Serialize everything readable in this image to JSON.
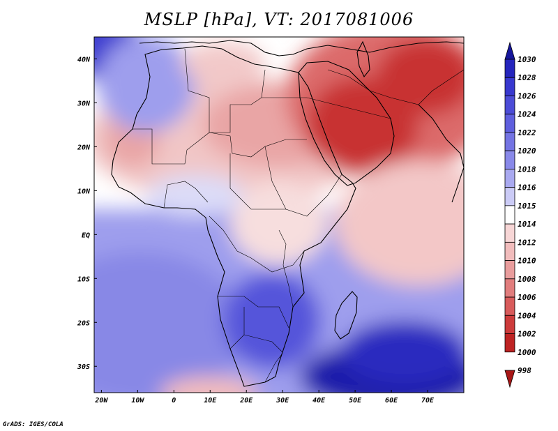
{
  "title": "MSLP [hPa], VT: 2017081006",
  "credit": "GrADS: IGES/COLA",
  "map": {
    "lon_range": [
      -22,
      80
    ],
    "lat_range": [
      -36,
      45
    ],
    "lon_ticks": [
      {
        "value": -20,
        "label": "20W"
      },
      {
        "value": -10,
        "label": "10W"
      },
      {
        "value": 0,
        "label": "0"
      },
      {
        "value": 10,
        "label": "10E"
      },
      {
        "value": 20,
        "label": "20E"
      },
      {
        "value": 30,
        "label": "30E"
      },
      {
        "value": 40,
        "label": "40E"
      },
      {
        "value": 50,
        "label": "50E"
      },
      {
        "value": 60,
        "label": "60E"
      },
      {
        "value": 70,
        "label": "70E"
      }
    ],
    "lat_ticks": [
      {
        "value": 40,
        "label": "40N"
      },
      {
        "value": 30,
        "label": "30N"
      },
      {
        "value": 20,
        "label": "20N"
      },
      {
        "value": 10,
        "label": "10N"
      },
      {
        "value": 0,
        "label": "EQ"
      },
      {
        "value": -10,
        "label": "10S"
      },
      {
        "value": -20,
        "label": "20S"
      },
      {
        "value": -30,
        "label": "30S"
      }
    ],
    "pressure_centers": [
      {
        "lon": 50,
        "lat": 24,
        "level": 998,
        "radius": 22
      },
      {
        "lon": 65,
        "lat": 33,
        "level": 998,
        "radius": 18
      },
      {
        "lon": 35,
        "lat": 22,
        "level": 1004,
        "radius": 18
      },
      {
        "lon": 15,
        "lat": 18,
        "level": 1008,
        "radius": 15
      },
      {
        "lon": -12,
        "lat": 22,
        "level": 1008,
        "radius": 8
      },
      {
        "lon": 18,
        "lat": 38,
        "level": 1012,
        "radius": 10
      },
      {
        "lon": 65,
        "lat": 0,
        "level": 1012,
        "radius": 22
      },
      {
        "lon": 60,
        "lat": -32,
        "level": 1030,
        "radius": 16
      },
      {
        "lon": 28,
        "lat": -22,
        "level": 1024,
        "radius": 9
      },
      {
        "lon": -20,
        "lat": 44,
        "level": 1026,
        "radius": 8
      },
      {
        "lon": 0,
        "lat": -20,
        "level": 1020,
        "radius": 18
      },
      {
        "lon": 10,
        "lat": -36,
        "level": 1010,
        "radius": 7
      }
    ]
  },
  "colorbar": {
    "labels": [
      "1030",
      "1028",
      "1026",
      "1024",
      "1022",
      "1020",
      "1018",
      "1016",
      "1015",
      "1014",
      "1012",
      "1010",
      "1008",
      "1006",
      "1004",
      "1002",
      "1000",
      "998"
    ],
    "colors": [
      "#16169c",
      "#2525bd",
      "#3838cf",
      "#4c4cd7",
      "#5f5fde",
      "#7474e3",
      "#8989e9",
      "#a9a9f0",
      "#cbcbf6",
      "#ffffff",
      "#f7d6d6",
      "#f1bcbc",
      "#e99d9d",
      "#e17d7d",
      "#d85b5b",
      "#cd3b3b",
      "#be2323",
      "#a81616"
    ]
  }
}
